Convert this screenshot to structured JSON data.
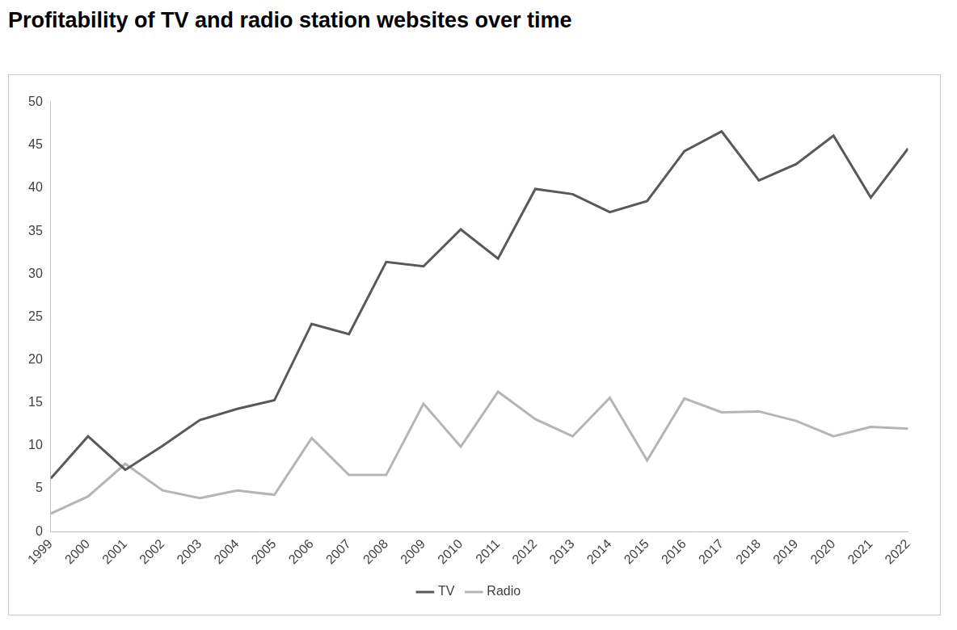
{
  "chart_data": {
    "type": "line",
    "title": "Profitability of TV and radio station websites over time",
    "categories": [
      "1999",
      "2000",
      "2001",
      "2002",
      "2003",
      "2004",
      "2005",
      "2006",
      "2007",
      "2008",
      "2009",
      "2010",
      "2011",
      "2012",
      "2013",
      "2014",
      "2015",
      "2016",
      "2017",
      "2018",
      "2019",
      "2020",
      "2021",
      "2022"
    ],
    "series": [
      {
        "name": "TV",
        "color": "#595959",
        "values": [
          6.2,
          11.1,
          7.2,
          10,
          13,
          14.3,
          15.3,
          24.2,
          23,
          31.4,
          30.9,
          35.2,
          31.8,
          39.9,
          39.3,
          37.2,
          38.5,
          44.3,
          46.6,
          40.9,
          42.8,
          46.1,
          38.9,
          44.6
        ]
      },
      {
        "name": "Radio",
        "color": "#b5b5b5",
        "values": [
          2.1,
          4.1,
          7.9,
          4.8,
          3.9,
          4.8,
          4.3,
          10.9,
          6.6,
          6.6,
          14.9,
          9.9,
          16.3,
          13.1,
          11.1,
          15.6,
          8.3,
          15.5,
          13.9,
          14.0,
          12.9,
          11.1,
          12.2,
          12.0
        ]
      }
    ],
    "ylim": [
      0,
      50
    ],
    "yticks": [
      0,
      5,
      10,
      15,
      20,
      25,
      30,
      35,
      40,
      45,
      50
    ],
    "grid": false,
    "legend": "bottom"
  }
}
